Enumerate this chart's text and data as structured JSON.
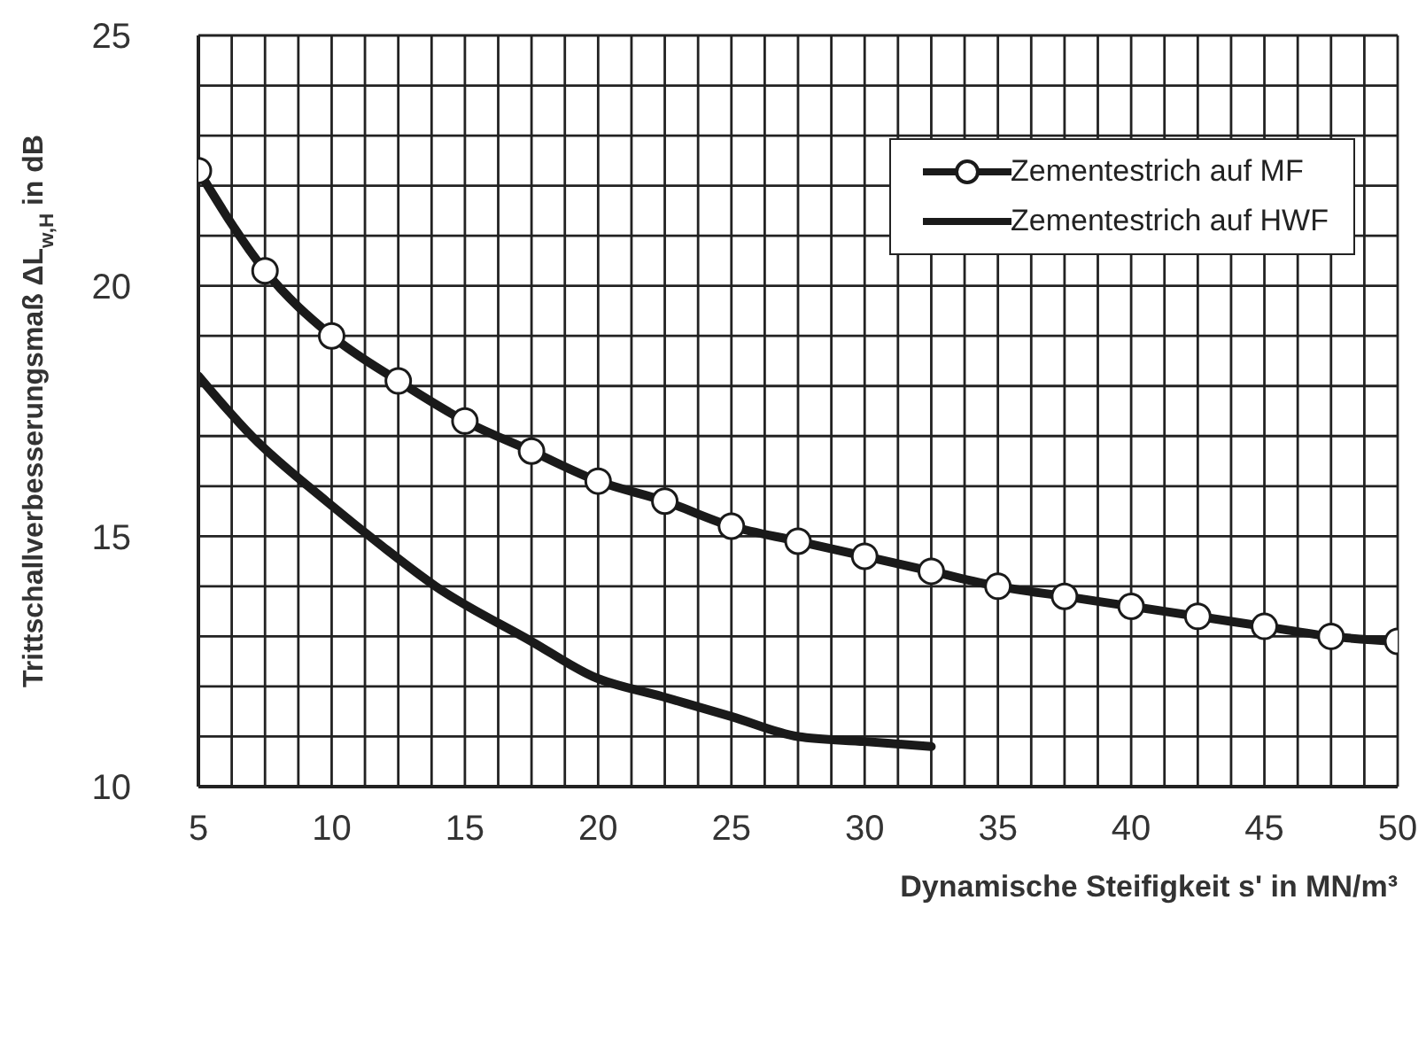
{
  "chart_data": {
    "type": "line",
    "xlabel": "Dynamische Steifigkeit s' in MN/m³",
    "ylabel": "Trittschallverbesserungsmaß ΔL$_{w,H}$ in dB",
    "xlim": [
      5,
      50
    ],
    "xticks": [
      5,
      {
        "value": 6.25,
        "label": null
      },
      {
        "value": 7.5,
        "label": null
      },
      {
        "value": 8.75,
        "label": null
      },
      10,
      {
        "value": 11.25,
        "label": null
      },
      {
        "value": 12.5,
        "label": null
      },
      {
        "value": 13.75,
        "label": null
      },
      15,
      {
        "value": 16.25,
        "label": null
      },
      {
        "value": 17.5,
        "label": null
      },
      {
        "value": 18.75,
        "label": null
      },
      20,
      {
        "value": 21.25,
        "label": null
      },
      {
        "value": 22.5,
        "label": null
      },
      {
        "value": 23.75,
        "label": null
      },
      25,
      {
        "value": 26.25,
        "label": null
      },
      {
        "value": 27.5,
        "label": null
      },
      {
        "value": 28.75,
        "label": null
      },
      30,
      {
        "value": 31.25,
        "label": null
      },
      {
        "value": 32.5,
        "label": null
      },
      {
        "value": 33.75,
        "label": null
      },
      35,
      {
        "value": 36.25,
        "label": null
      },
      {
        "value": 37.5,
        "label": null
      },
      {
        "value": 38.75,
        "label": null
      },
      40,
      {
        "value": 41.25,
        "label": null
      },
      {
        "value": 42.5,
        "label": null
      },
      {
        "value": 43.75,
        "label": null
      },
      45,
      {
        "value": 46.25,
        "label": null
      },
      {
        "value": 47.5,
        "label": null
      },
      {
        "value": 48.75,
        "label": null
      },
      50
    ],
    "ylim": [
      10,
      25
    ],
    "yticks": [
      10,
      {
        "value": 11,
        "label": null
      },
      {
        "value": 12,
        "label": null
      },
      {
        "value": 13,
        "label": null
      },
      {
        "value": 14,
        "label": null
      },
      15,
      {
        "value": 16,
        "label": null
      },
      {
        "value": 17,
        "label": null
      },
      {
        "value": 18,
        "label": null
      },
      {
        "value": 19,
        "label": null
      },
      20,
      {
        "value": 21,
        "label": null
      },
      {
        "value": 22,
        "label": null
      },
      {
        "value": 23,
        "label": null
      },
      {
        "value": 24,
        "label": null
      },
      25
    ],
    "grid": true,
    "legend": "top right",
    "line_style": "solid",
    "series": [
      {
        "name": "Zementestrich auf MF",
        "color": "#1a1a1a",
        "marker": "circle",
        "x": [
          5,
          7.5,
          10,
          12.5,
          15,
          17.5,
          20,
          22.5,
          25,
          27.5,
          30,
          32.5,
          35,
          37.5,
          40,
          42.5,
          45,
          47.5,
          50
        ],
        "values": [
          22.3,
          20.3,
          19.0,
          18.1,
          17.3,
          16.7,
          16.1,
          15.7,
          15.2,
          14.9,
          14.6,
          14.3,
          14.0,
          13.8,
          13.6,
          13.4,
          13.2,
          13.0,
          12.9
        ]
      },
      {
        "name": "Zementestrich auf HWF",
        "color": "#1a1a1a",
        "marker": "none",
        "x": [
          5,
          7,
          9.8,
          11.9,
          13.9,
          17.5,
          19.8,
          22.4,
          25,
          27.5,
          30,
          32.5
        ],
        "values": [
          18.2,
          17.0,
          15.7,
          14.8,
          14.0,
          12.9,
          12.2,
          11.8,
          11.4,
          11.0,
          10.9,
          10.8
        ]
      }
    ]
  }
}
